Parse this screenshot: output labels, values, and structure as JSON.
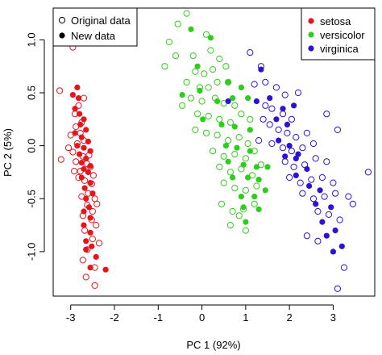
{
  "chart_data": {
    "type": "scatter",
    "title": "",
    "xlabel": "PC 1 (92%)",
    "ylabel": "PC 2 (5%)",
    "xlim": [
      -3.4,
      3.95
    ],
    "ylim": [
      -1.42,
      1.3
    ],
    "x_ticks": [
      -3,
      -2,
      -1,
      0,
      1,
      2,
      3
    ],
    "y_ticks": [
      -1.0,
      -0.5,
      0.0,
      0.5,
      1.0
    ],
    "x_tick_labels": [
      "-3",
      "-2",
      "-1",
      "0",
      "1",
      "2",
      "3"
    ],
    "y_tick_labels": [
      "-1.0",
      "-0.5",
      "0.0",
      "0.5",
      "1.0"
    ],
    "grid": false,
    "legend_marker": {
      "placement": "top-left",
      "entries": [
        {
          "label": "Original data",
          "marker": "open-circle"
        },
        {
          "label": "New data",
          "marker": "filled-circle"
        }
      ]
    },
    "legend_species": {
      "placement": "top-right",
      "entries": [
        {
          "label": "setosa",
          "color": "#e8141c"
        },
        {
          "label": "versicolor",
          "color": "#2fcd1b"
        },
        {
          "label": "virginica",
          "color": "#2b13d6"
        }
      ]
    },
    "series": [
      {
        "name": "setosa",
        "color": "#e8141c",
        "original": [
          [
            -3.25,
            0.52
          ],
          [
            -2.95,
            0.93
          ],
          [
            -2.82,
            0.38
          ],
          [
            -2.9,
            0.3
          ],
          [
            -2.75,
            0.22
          ],
          [
            -2.88,
            0.18
          ],
          [
            -3.0,
            0.1
          ],
          [
            -2.7,
            0.05
          ],
          [
            -2.85,
            0.02
          ],
          [
            -3.05,
            -0.02
          ],
          [
            -2.95,
            -0.06
          ],
          [
            -2.72,
            -0.1
          ],
          [
            -3.22,
            -0.13
          ],
          [
            -2.88,
            -0.15
          ],
          [
            -2.63,
            -0.17
          ],
          [
            -2.78,
            -0.24
          ],
          [
            -2.55,
            -0.2
          ],
          [
            -2.82,
            -0.3
          ],
          [
            -2.68,
            -0.33
          ],
          [
            -2.52,
            -0.36
          ],
          [
            -2.6,
            -0.45
          ],
          [
            -2.75,
            -0.48
          ],
          [
            -2.45,
            -0.5
          ],
          [
            -2.62,
            -0.56
          ],
          [
            -2.5,
            -0.62
          ],
          [
            -2.72,
            -0.66
          ],
          [
            -2.52,
            -0.7
          ],
          [
            -2.42,
            -0.75
          ],
          [
            -2.68,
            -0.8
          ],
          [
            -2.5,
            -0.88
          ],
          [
            -2.35,
            -0.92
          ],
          [
            -2.62,
            -0.98
          ],
          [
            -2.72,
            -1.08
          ],
          [
            -2.45,
            -1.15
          ],
          [
            -2.65,
            -1.24
          ],
          [
            -2.45,
            -1.32
          ],
          [
            -2.4,
            -0.55
          ],
          [
            -2.7,
            0.45
          ],
          [
            -2.78,
            0.12
          ],
          [
            -2.92,
            -0.24
          ],
          [
            -2.58,
            -0.09
          ],
          [
            -2.48,
            -0.28
          ]
        ],
        "new": [
          [
            -2.95,
            0.48
          ],
          [
            -2.85,
            0.55
          ],
          [
            -2.82,
            0.45
          ],
          [
            -2.9,
            0.35
          ],
          [
            -2.8,
            0.3
          ],
          [
            -2.7,
            0.25
          ],
          [
            -2.78,
            0.2
          ],
          [
            -2.65,
            0.15
          ],
          [
            -2.9,
            0.12
          ],
          [
            -2.75,
            0.08
          ],
          [
            -2.6,
            0.04
          ],
          [
            -2.85,
            0.0
          ],
          [
            -2.7,
            -0.02
          ],
          [
            -2.55,
            -0.05
          ],
          [
            -2.8,
            -0.08
          ],
          [
            -2.65,
            -0.12
          ],
          [
            -2.75,
            -0.16
          ],
          [
            -2.55,
            -0.19
          ],
          [
            -2.7,
            -0.22
          ],
          [
            -2.6,
            -0.25
          ],
          [
            -2.75,
            -0.3
          ],
          [
            -2.55,
            -0.35
          ],
          [
            -2.68,
            -0.4
          ],
          [
            -2.5,
            -0.45
          ],
          [
            -2.65,
            -0.5
          ],
          [
            -2.58,
            -0.58
          ],
          [
            -2.7,
            -0.62
          ],
          [
            -2.55,
            -0.68
          ],
          [
            -2.7,
            -0.75
          ],
          [
            -2.55,
            -0.82
          ],
          [
            -2.65,
            -0.9
          ],
          [
            -2.52,
            -0.95
          ],
          [
            -2.65,
            -0.98
          ],
          [
            -2.42,
            -1.05
          ],
          [
            -2.55,
            -1.15
          ],
          [
            -2.2,
            -1.17
          ]
        ]
      },
      {
        "name": "versicolor",
        "color": "#2fcd1b",
        "original": [
          [
            -0.35,
            1.25
          ],
          [
            -0.55,
            1.15
          ],
          [
            -0.75,
            0.98
          ],
          [
            -0.85,
            0.75
          ],
          [
            -0.2,
            0.85
          ],
          [
            0.1,
            1.05
          ],
          [
            0.2,
            0.9
          ],
          [
            0.4,
            0.82
          ],
          [
            -0.15,
            0.7
          ],
          [
            0.05,
            0.68
          ],
          [
            0.25,
            0.72
          ],
          [
            0.55,
            0.75
          ],
          [
            -0.35,
            0.6
          ],
          [
            -0.05,
            0.55
          ],
          [
            0.15,
            0.55
          ],
          [
            0.35,
            0.6
          ],
          [
            0.6,
            0.6
          ],
          [
            -0.25,
            0.45
          ],
          [
            0.0,
            0.42
          ],
          [
            0.3,
            0.45
          ],
          [
            0.5,
            0.4
          ],
          [
            0.75,
            0.38
          ],
          [
            -0.1,
            0.3
          ],
          [
            0.15,
            0.28
          ],
          [
            0.4,
            0.25
          ],
          [
            0.65,
            0.22
          ],
          [
            0.9,
            0.3
          ],
          [
            1.1,
            0.25
          ],
          [
            -0.15,
            0.15
          ],
          [
            0.1,
            0.12
          ],
          [
            0.35,
            0.1
          ],
          [
            0.6,
            0.05
          ],
          [
            0.85,
            0.08
          ],
          [
            1.05,
            0.02
          ],
          [
            0.25,
            -0.05
          ],
          [
            0.5,
            -0.1
          ],
          [
            0.75,
            -0.08
          ],
          [
            1.0,
            -0.12
          ],
          [
            1.2,
            -0.05
          ],
          [
            0.4,
            -0.2
          ],
          [
            0.65,
            -0.25
          ],
          [
            0.9,
            -0.22
          ],
          [
            1.15,
            -0.28
          ],
          [
            1.35,
            -0.18
          ],
          [
            0.5,
            -0.35
          ],
          [
            0.75,
            -0.4
          ],
          [
            1.0,
            -0.42
          ],
          [
            1.25,
            -0.38
          ],
          [
            0.45,
            -0.55
          ],
          [
            0.7,
            -0.62
          ],
          [
            0.95,
            -0.6
          ],
          [
            1.2,
            -0.55
          ],
          [
            0.65,
            -0.75
          ],
          [
            1.0,
            -0.8
          ],
          [
            0.85,
            -0.66
          ],
          [
            -0.45,
            0.38
          ],
          [
            -0.6,
            0.85
          ]
        ],
        "new": [
          [
            -0.25,
            1.1
          ],
          [
            -0.1,
            0.75
          ],
          [
            0.2,
            1.02
          ],
          [
            0.6,
            0.6
          ],
          [
            0.9,
            0.55
          ],
          [
            -0.05,
            0.52
          ],
          [
            0.35,
            0.42
          ],
          [
            0.7,
            0.45
          ],
          [
            1.05,
            0.45
          ],
          [
            0.45,
            0.2
          ],
          [
            0.75,
            0.18
          ],
          [
            1.1,
            0.15
          ],
          [
            0.55,
            0.0
          ],
          [
            0.8,
            -0.02
          ],
          [
            1.1,
            -0.05
          ],
          [
            0.6,
            -0.15
          ],
          [
            0.95,
            -0.18
          ],
          [
            1.25,
            -0.2
          ],
          [
            0.7,
            -0.3
          ],
          [
            1.05,
            -0.3
          ],
          [
            1.3,
            -0.32
          ],
          [
            0.9,
            -0.48
          ],
          [
            1.2,
            -0.48
          ],
          [
            1.45,
            -0.42
          ],
          [
            0.95,
            -0.58
          ],
          [
            1.3,
            -0.6
          ],
          [
            1.0,
            -0.72
          ],
          [
            1.5,
            -0.2
          ],
          [
            -0.45,
            0.48
          ],
          [
            0.02,
            0.25
          ]
        ]
      },
      {
        "name": "virginica",
        "color": "#2b13d6",
        "original": [
          [
            1.1,
            0.88
          ],
          [
            1.35,
            0.75
          ],
          [
            1.2,
            0.58
          ],
          [
            1.45,
            0.6
          ],
          [
            1.7,
            0.55
          ],
          [
            1.9,
            0.48
          ],
          [
            2.2,
            0.5
          ],
          [
            1.6,
            0.35
          ],
          [
            1.85,
            0.3
          ],
          [
            2.05,
            0.25
          ],
          [
            1.55,
            0.2
          ],
          [
            1.75,
            0.15
          ],
          [
            1.95,
            0.12
          ],
          [
            2.15,
            0.08
          ],
          [
            2.4,
            0.12
          ],
          [
            1.6,
            0.02
          ],
          [
            1.85,
            -0.02
          ],
          [
            2.05,
            -0.05
          ],
          [
            2.3,
            -0.02
          ],
          [
            2.55,
            0.02
          ],
          [
            1.9,
            -0.15
          ],
          [
            2.1,
            -0.2
          ],
          [
            2.35,
            -0.18
          ],
          [
            2.6,
            -0.12
          ],
          [
            2.85,
            -0.15
          ],
          [
            2.0,
            -0.3
          ],
          [
            2.25,
            -0.35
          ],
          [
            2.5,
            -0.32
          ],
          [
            2.75,
            -0.3
          ],
          [
            3.0,
            -0.35
          ],
          [
            2.3,
            -0.45
          ],
          [
            2.55,
            -0.5
          ],
          [
            2.8,
            -0.48
          ],
          [
            3.05,
            -0.45
          ],
          [
            3.35,
            -0.48
          ],
          [
            2.65,
            -0.62
          ],
          [
            2.9,
            -0.65
          ],
          [
            3.15,
            -0.7
          ],
          [
            3.45,
            -0.55
          ],
          [
            3.8,
            -0.25
          ],
          [
            2.85,
            0.3
          ],
          [
            3.1,
            0.15
          ],
          [
            1.4,
            0.25
          ],
          [
            1.3,
            0.05
          ],
          [
            2.4,
            -0.85
          ],
          [
            3.25,
            -1.15
          ],
          [
            3.1,
            -1.35
          ],
          [
            1.45,
            0.38
          ],
          [
            2.65,
            -0.9
          ]
        ],
        "new": [
          [
            1.35,
            0.72
          ],
          [
            1.25,
            0.42
          ],
          [
            1.55,
            0.45
          ],
          [
            1.85,
            0.35
          ],
          [
            2.1,
            0.38
          ],
          [
            1.7,
            0.25
          ],
          [
            1.95,
            0.2
          ],
          [
            1.75,
            0.05
          ],
          [
            2.0,
            0.0
          ],
          [
            2.2,
            -0.08
          ],
          [
            1.9,
            -0.1
          ],
          [
            2.15,
            -0.12
          ],
          [
            2.4,
            -0.22
          ],
          [
            2.15,
            -0.28
          ],
          [
            2.45,
            -0.38
          ],
          [
            2.7,
            -0.42
          ],
          [
            2.6,
            -0.55
          ],
          [
            2.95,
            -0.58
          ],
          [
            2.75,
            -0.72
          ],
          [
            3.05,
            -0.8
          ],
          [
            2.85,
            -0.85
          ],
          [
            3.2,
            -0.95
          ],
          [
            0.6,
            0.42
          ],
          [
            3.0,
            -1.0
          ]
        ]
      }
    ]
  }
}
